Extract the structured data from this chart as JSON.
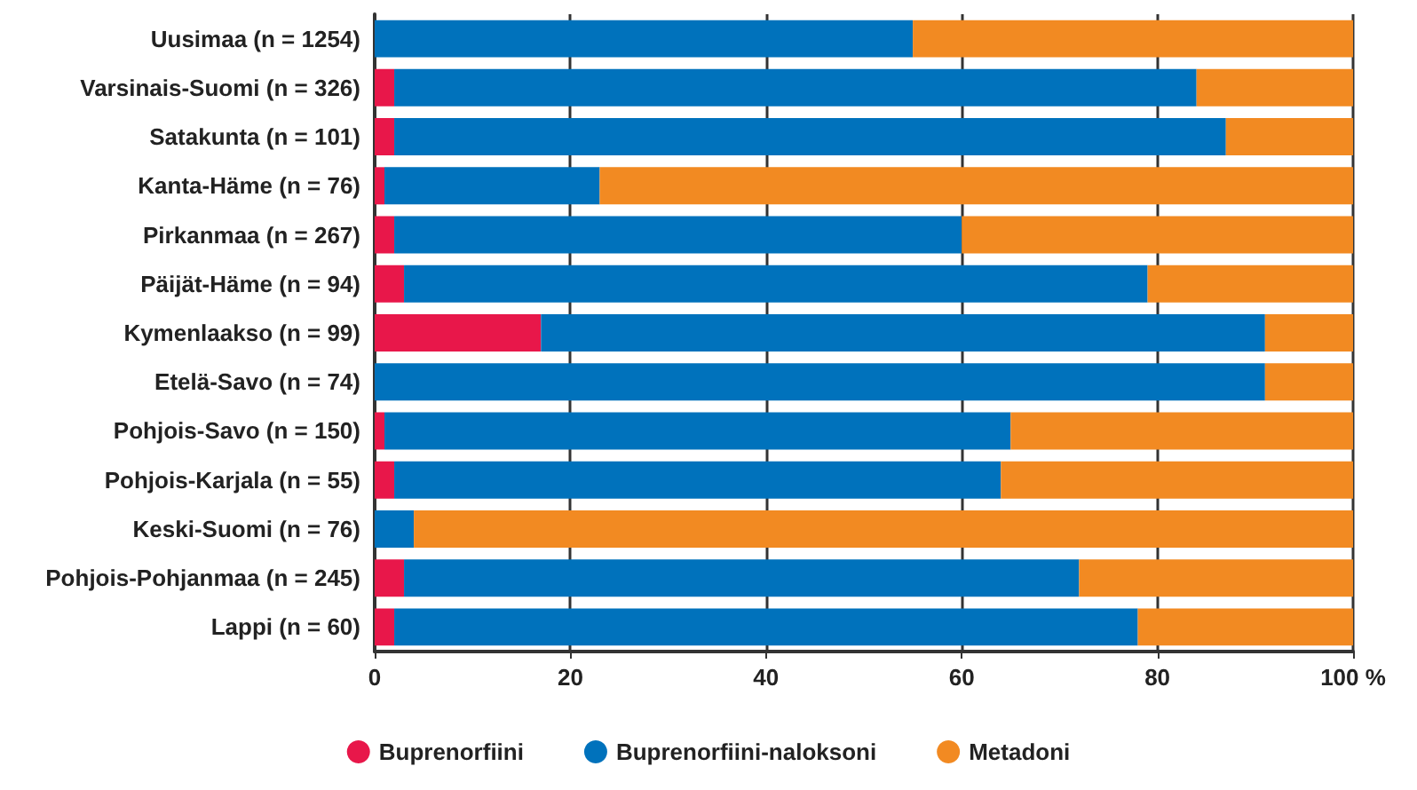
{
  "chart_data": {
    "type": "bar",
    "orientation": "horizontal",
    "stacked": true,
    "categories": [
      "Uusimaa (n = 1254)",
      "Varsinais-Suomi (n = 326)",
      "Satakunta (n = 101)",
      "Kanta-Häme (n = 76)",
      "Pirkanmaa (n = 267)",
      "Päijät-Häme (n = 94)",
      "Kymenlaakso (n = 99)",
      "Etelä-Savo (n = 74)",
      "Pohjois-Savo (n = 150)",
      "Pohjois-Karjala (n = 55)",
      "Keski-Suomi (n = 76)",
      "Pohjois-Pohjanmaa (n = 245)",
      "Lappi (n = 60)"
    ],
    "series": [
      {
        "name": "Buprenorfiini",
        "color": "#e8174a",
        "values": [
          0,
          2,
          2,
          1,
          2,
          3,
          17,
          0,
          1,
          2,
          0,
          3,
          2
        ]
      },
      {
        "name": "Buprenorfiini-naloksoni",
        "color": "#0072bc",
        "values": [
          55,
          82,
          85,
          22,
          58,
          76,
          74,
          91,
          64,
          62,
          4,
          69,
          76
        ]
      },
      {
        "name": "Metadoni",
        "color": "#f28a22",
        "values": [
          45,
          16,
          13,
          77,
          40,
          21,
          9,
          9,
          35,
          36,
          96,
          28,
          22
        ]
      }
    ],
    "xlim": [
      0,
      100
    ],
    "xticks": [
      0,
      20,
      40,
      60,
      80,
      {
        "value": 100,
        "label": "100 %"
      }
    ],
    "grid": "x",
    "legend": "bottom",
    "marker": "circle"
  }
}
